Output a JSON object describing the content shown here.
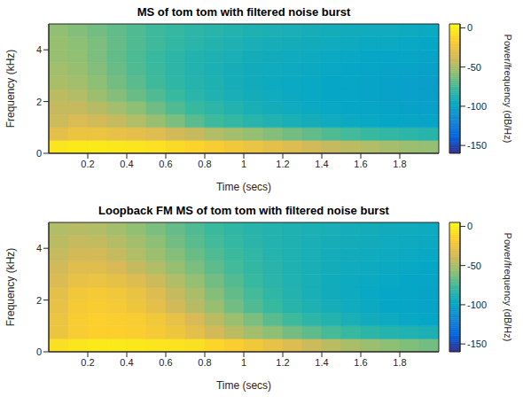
{
  "chart_data": [
    {
      "type": "heatmap",
      "title": "MS of tom tom with filtered noise burst",
      "x_label": "Time (secs)",
      "y_label": "Frequency (kHz)",
      "xlim": [
        0,
        2
      ],
      "ylim": [
        0,
        5
      ],
      "xticks": [
        0.2,
        0.4,
        0.6,
        0.8,
        1,
        1.2,
        1.4,
        1.6,
        1.8
      ],
      "yticks": [
        0,
        2,
        4
      ],
      "x_edges": [
        0,
        0.1,
        0.2,
        0.3,
        0.4,
        0.5,
        0.6,
        0.7,
        0.8,
        0.9,
        1,
        1.1,
        1.2,
        1.3,
        1.4,
        1.5,
        1.6,
        1.7,
        1.8,
        1.9,
        2
      ],
      "y_edges": [
        0,
        0.5,
        1,
        1.5,
        2,
        2.5,
        3,
        3.5,
        4,
        4.5,
        5
      ],
      "cells": [
        [
          -5,
          -3,
          -3,
          -4,
          -5,
          -7,
          -10,
          -14,
          -18,
          -22,
          -26,
          -30,
          -34,
          -38,
          -42,
          -45,
          -48,
          -51,
          -54,
          -56
        ],
        [
          -30,
          -25,
          -25,
          -28,
          -30,
          -33,
          -38,
          -42,
          -48,
          -52,
          -56,
          -60,
          -64,
          -68,
          -72,
          -75,
          -78,
          -80,
          -82,
          -84
        ],
        [
          -40,
          -35,
          -38,
          -42,
          -48,
          -55,
          -62,
          -70,
          -76,
          -80,
          -84,
          -87,
          -90,
          -92,
          -94,
          -96,
          -97,
          -98,
          -99,
          -100
        ],
        [
          -42,
          -42,
          -46,
          -52,
          -58,
          -65,
          -72,
          -78,
          -82,
          -86,
          -90,
          -92,
          -94,
          -96,
          -97,
          -98,
          -99,
          -100,
          -101,
          -102
        ],
        [
          -45,
          -48,
          -54,
          -60,
          -66,
          -72,
          -78,
          -83,
          -87,
          -90,
          -92,
          -94,
          -96,
          -97,
          -98,
          -99,
          -100,
          -101,
          -102,
          -103
        ],
        [
          -50,
          -52,
          -58,
          -64,
          -70,
          -76,
          -81,
          -85,
          -88,
          -91,
          -93,
          -95,
          -96,
          -97,
          -98,
          -99,
          -100,
          -101,
          -102,
          -103
        ],
        [
          -52,
          -55,
          -60,
          -66,
          -72,
          -77,
          -82,
          -86,
          -89,
          -91,
          -93,
          -94,
          -95,
          -96,
          -97,
          -98,
          -99,
          -100,
          -100,
          -101
        ],
        [
          -55,
          -57,
          -62,
          -68,
          -73,
          -78,
          -82,
          -86,
          -88,
          -90,
          -92,
          -93,
          -94,
          -95,
          -96,
          -97,
          -98,
          -98,
          -99,
          -100
        ],
        [
          -55,
          -58,
          -62,
          -67,
          -72,
          -76,
          -80,
          -83,
          -86,
          -88,
          -90,
          -91,
          -92,
          -93,
          -94,
          -95,
          -96,
          -96,
          -97,
          -98
        ],
        [
          -57,
          -60,
          -64,
          -68,
          -72,
          -76,
          -79,
          -82,
          -84,
          -86,
          -88,
          -89,
          -90,
          -91,
          -92,
          -93,
          -94,
          -94,
          -95,
          -96
        ]
      ],
      "colorbar": {
        "range": [
          -160,
          5
        ],
        "ticks": [
          0,
          -50,
          -100,
          -150
        ],
        "label": "Power/frequency (dB/Hz)"
      }
    },
    {
      "type": "heatmap",
      "title": "Loopback FM MS of tom tom with filtered noise burst",
      "x_label": "Time (secs)",
      "y_label": "Frequency (kHz)",
      "xlim": [
        0,
        2
      ],
      "ylim": [
        0,
        5
      ],
      "xticks": [
        0.2,
        0.4,
        0.6,
        0.8,
        1,
        1.2,
        1.4,
        1.6,
        1.8
      ],
      "yticks": [
        0,
        2,
        4
      ],
      "x_edges": [
        0,
        0.1,
        0.2,
        0.3,
        0.4,
        0.5,
        0.6,
        0.7,
        0.8,
        0.9,
        1,
        1.1,
        1.2,
        1.3,
        1.4,
        1.5,
        1.6,
        1.7,
        1.8,
        1.9,
        2
      ],
      "y_edges": [
        0,
        0.5,
        1,
        1.5,
        2,
        2.5,
        3,
        3.5,
        4,
        4.5,
        5
      ],
      "cells": [
        [
          -8,
          -5,
          -3,
          -3,
          -4,
          -5,
          -6,
          -8,
          -12,
          -16,
          -22,
          -28,
          -34,
          -40,
          -45,
          -50,
          -54,
          -58,
          -61,
          -64
        ],
        [
          -25,
          -18,
          -15,
          -15,
          -17,
          -20,
          -24,
          -30,
          -38,
          -45,
          -52,
          -58,
          -64,
          -69,
          -74,
          -78,
          -82,
          -85,
          -87,
          -89
        ],
        [
          -25,
          -18,
          -15,
          -16,
          -18,
          -22,
          -28,
          -36,
          -45,
          -54,
          -62,
          -70,
          -76,
          -82,
          -86,
          -90,
          -93,
          -95,
          -97,
          -98
        ],
        [
          -28,
          -20,
          -18,
          -20,
          -24,
          -30,
          -38,
          -46,
          -55,
          -64,
          -72,
          -78,
          -84,
          -88,
          -91,
          -94,
          -96,
          -98,
          -99,
          -100
        ],
        [
          -30,
          -22,
          -20,
          -22,
          -27,
          -34,
          -42,
          -50,
          -60,
          -68,
          -75,
          -81,
          -86,
          -90,
          -93,
          -95,
          -97,
          -98,
          -99,
          -100
        ],
        [
          -35,
          -28,
          -26,
          -29,
          -34,
          -40,
          -48,
          -56,
          -64,
          -71,
          -78,
          -83,
          -87,
          -90,
          -93,
          -95,
          -96,
          -97,
          -98,
          -99
        ],
        [
          -38,
          -32,
          -32,
          -36,
          -42,
          -48,
          -55,
          -62,
          -69,
          -75,
          -80,
          -84,
          -88,
          -90,
          -92,
          -94,
          -95,
          -96,
          -97,
          -98
        ],
        [
          -42,
          -38,
          -38,
          -42,
          -48,
          -54,
          -60,
          -66,
          -72,
          -77,
          -81,
          -85,
          -88,
          -90,
          -92,
          -93,
          -94,
          -95,
          -96,
          -97
        ],
        [
          -45,
          -42,
          -43,
          -47,
          -52,
          -58,
          -64,
          -70,
          -75,
          -79,
          -83,
          -86,
          -88,
          -90,
          -91,
          -92,
          -93,
          -94,
          -95,
          -96
        ],
        [
          -48,
          -46,
          -48,
          -52,
          -57,
          -62,
          -67,
          -72,
          -77,
          -81,
          -84,
          -86,
          -88,
          -89,
          -90,
          -91,
          -92,
          -93,
          -94,
          -95
        ]
      ],
      "colorbar": {
        "range": [
          -160,
          5
        ],
        "ticks": [
          0,
          -50,
          -100,
          -150
        ],
        "label": "Power/frequency (dB/Hz)"
      }
    }
  ]
}
